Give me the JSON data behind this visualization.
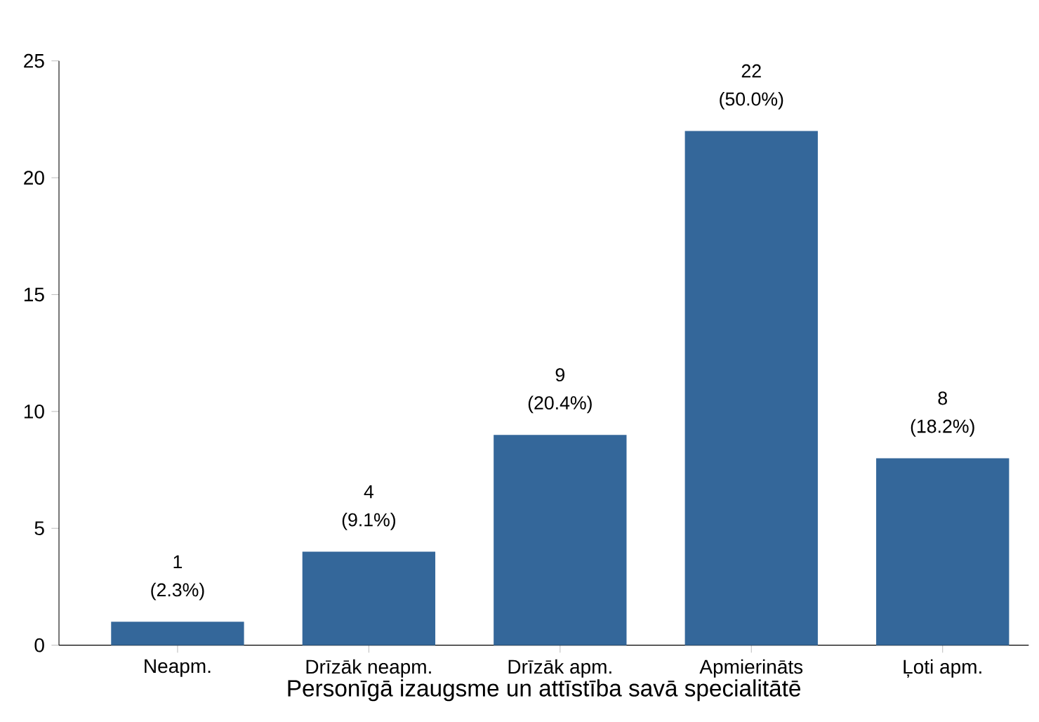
{
  "chart_data": {
    "type": "bar",
    "xlabel": "Personīgā izaugsme un attīstība savā specialitātē",
    "categories": [
      "Neapm.",
      "Drīzāk neapm.",
      "Drīzāk apm.",
      "Apmierināts",
      "Ļoti apm."
    ],
    "values": [
      1,
      4,
      9,
      22,
      8
    ],
    "value_labels": [
      "1 (2.3%)",
      "4 (9.1%)",
      "9 (20.4%)",
      "22 (50.0%)",
      "8 (18.2%)"
    ],
    "color": "#34679a",
    "ylim": [
      0,
      25
    ],
    "yticks": [
      0,
      5,
      10,
      15,
      20,
      25
    ]
  }
}
